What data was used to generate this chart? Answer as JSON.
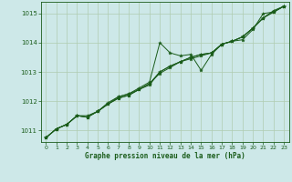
{
  "title": "Graphe pression niveau de la mer (hPa)",
  "bg_color": "#cde8e8",
  "plot_bg_color": "#cde8e8",
  "grid_color": "#b0ccb0",
  "line_color": "#1a5c1a",
  "xlim": [
    -0.5,
    23.5
  ],
  "ylim": [
    1010.6,
    1015.4
  ],
  "yticks": [
    1011,
    1012,
    1013,
    1014,
    1015
  ],
  "xticks": [
    0,
    1,
    2,
    3,
    4,
    5,
    6,
    7,
    8,
    9,
    10,
    11,
    12,
    13,
    14,
    15,
    16,
    17,
    18,
    19,
    20,
    21,
    22,
    23
  ],
  "series": [
    [
      1010.75,
      1011.05,
      1011.2,
      1011.5,
      1011.5,
      1011.65,
      1011.95,
      1012.15,
      1012.25,
      1012.45,
      1012.65,
      1014.0,
      1013.65,
      1013.55,
      1013.6,
      1013.05,
      1013.6,
      1013.95,
      1014.05,
      1014.1,
      1014.45,
      1015.0,
      1015.05,
      1015.25
    ],
    [
      1010.75,
      1011.05,
      1011.2,
      1011.5,
      1011.45,
      1011.65,
      1011.9,
      1012.15,
      1012.25,
      1012.4,
      1012.6,
      1012.95,
      1013.15,
      1013.35,
      1013.45,
      1013.55,
      1013.65,
      1013.95,
      1014.05,
      1014.2,
      1014.5,
      1014.85,
      1015.05,
      1015.25
    ],
    [
      1010.75,
      1011.05,
      1011.2,
      1011.5,
      1011.45,
      1011.65,
      1011.9,
      1012.1,
      1012.2,
      1012.4,
      1012.55,
      1013.0,
      1013.2,
      1013.35,
      1013.5,
      1013.6,
      1013.65,
      1013.95,
      1014.05,
      1014.2,
      1014.5,
      1014.85,
      1015.1,
      1015.25
    ],
    [
      1010.75,
      1011.05,
      1011.2,
      1011.5,
      1011.45,
      1011.65,
      1011.9,
      1012.1,
      1012.2,
      1012.4,
      1012.6,
      1013.0,
      1013.2,
      1013.35,
      1013.5,
      1013.6,
      1013.65,
      1013.95,
      1014.05,
      1014.2,
      1014.5,
      1014.85,
      1015.05,
      1015.25
    ]
  ],
  "figsize": [
    3.2,
    2.0
  ],
  "dpi": 100
}
